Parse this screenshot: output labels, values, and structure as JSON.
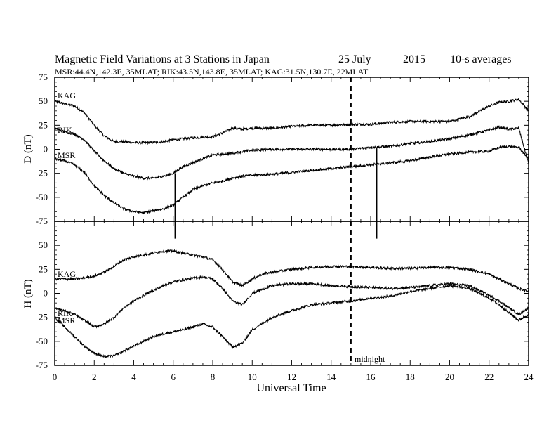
{
  "title": {
    "main": "Magnetic Field Variations at 3 Stations in Japan",
    "date": "25 July",
    "year": "2015",
    "avg": "10-s averages"
  },
  "subtitle": "MSR:44.4N,142.3E, 35MLAT;  RIK:43.5N,143.8E, 35MLAT;  KAG:31.5N,130.7E, 22MLAT",
  "xlabel": "Universal Time",
  "midnight_label": "midnight",
  "xticks": [
    "0",
    "2",
    "4",
    "6",
    "8",
    "10",
    "12",
    "14",
    "16",
    "18",
    "20",
    "22",
    "24"
  ],
  "chart_data": [
    {
      "type": "line",
      "panel": "D",
      "ylabel": "D (nT)",
      "xlim": [
        0,
        24
      ],
      "ylim": [
        -75,
        75
      ],
      "yticks": [
        "75",
        "50",
        "25",
        "0",
        "-25",
        "-50",
        "-75"
      ],
      "midnight_ut": 15,
      "spikes": [
        {
          "x": 6.1,
          "y_top": -25,
          "y_bottom": -93
        },
        {
          "x": 16.3,
          "y_top": 2,
          "y_bottom": -93
        }
      ],
      "series": [
        {
          "name": "KAG",
          "x": [
            0,
            1,
            1.5,
            2,
            2.5,
            3,
            3.5,
            4,
            4.5,
            5,
            5.5,
            6,
            7,
            8,
            8.5,
            9,
            9.5,
            10,
            11,
            12,
            13,
            14,
            15,
            16,
            17,
            18,
            19,
            20,
            21,
            22,
            22.5,
            23,
            23.5,
            24
          ],
          "values": [
            50,
            45,
            38,
            25,
            14,
            8,
            8,
            7,
            7,
            7,
            8,
            10,
            12,
            13,
            17,
            22,
            21,
            22,
            22,
            24,
            25,
            25,
            26,
            26,
            28,
            29,
            29,
            29,
            34,
            45,
            49,
            50,
            52,
            40
          ]
        },
        {
          "name": "RIK",
          "x": [
            0,
            0.5,
            1,
            1.5,
            2,
            2.5,
            3,
            3.5,
            4,
            4.5,
            5,
            5.5,
            6,
            6.5,
            7,
            7.5,
            8,
            9,
            10,
            11,
            12,
            13,
            14,
            15,
            16,
            17,
            18,
            19,
            20,
            21,
            22,
            22.5,
            23,
            23.5,
            24
          ],
          "values": [
            22,
            18,
            16,
            10,
            -2,
            -12,
            -20,
            -25,
            -28,
            -30,
            -30,
            -28,
            -25,
            -18,
            -14,
            -10,
            -6,
            -4,
            -1,
            0,
            0,
            0,
            0,
            0,
            2,
            3,
            6,
            8,
            11,
            15,
            20,
            23,
            21,
            22,
            -15
          ]
        },
        {
          "name": "MSR",
          "x": [
            0,
            0.5,
            1,
            1.5,
            2,
            2.5,
            3,
            3.5,
            4,
            4.5,
            5,
            5.5,
            6,
            6.5,
            7,
            7.5,
            8,
            8.5,
            9,
            9.5,
            10,
            11,
            12,
            13,
            14,
            15,
            16,
            17,
            18,
            19,
            20,
            21,
            22,
            22.5,
            23,
            23.5,
            24
          ],
          "values": [
            -10,
            -12,
            -16,
            -24,
            -38,
            -48,
            -56,
            -62,
            -65,
            -66,
            -64,
            -62,
            -58,
            -50,
            -42,
            -38,
            -35,
            -33,
            -30,
            -28,
            -27,
            -26,
            -24,
            -22,
            -20,
            -18,
            -16,
            -14,
            -12,
            -8,
            -5,
            -3,
            -2,
            2,
            3,
            2,
            -10
          ]
        }
      ]
    },
    {
      "type": "line",
      "panel": "H",
      "ylabel": "H (nT)",
      "xlim": [
        0,
        24
      ],
      "ylim": [
        -75,
        75
      ],
      "yticks": [
        "50",
        "25",
        "0",
        "-25",
        "-50",
        "-75"
      ],
      "midnight_ut": 15,
      "series": [
        {
          "name": "KAG",
          "x": [
            0,
            1,
            1.5,
            2,
            2.5,
            3,
            3.5,
            4,
            4.5,
            5,
            5.5,
            6,
            6.5,
            7,
            7.5,
            8,
            8.5,
            9,
            9.5,
            10,
            10.5,
            11,
            12,
            13,
            14,
            15,
            16,
            17,
            18,
            19,
            20,
            21,
            22,
            22.5,
            23,
            23.5,
            24
          ],
          "values": [
            15,
            15,
            16,
            18,
            22,
            28,
            35,
            38,
            40,
            42,
            44,
            44,
            42,
            40,
            38,
            35,
            25,
            12,
            8,
            15,
            20,
            22,
            25,
            27,
            28,
            28,
            27,
            26,
            26,
            27,
            27,
            25,
            20,
            15,
            10,
            5,
            2
          ]
        },
        {
          "name": "RIK",
          "x": [
            0,
            0.5,
            1,
            1.5,
            2,
            2.5,
            3,
            3.5,
            4,
            4.5,
            5,
            5.5,
            6,
            6.5,
            7,
            7.5,
            8,
            8.5,
            9,
            9.5,
            10,
            11,
            12,
            13,
            14,
            15,
            16,
            17,
            18,
            19,
            20,
            21,
            22,
            22.5,
            23,
            23.5,
            24
          ],
          "values": [
            -15,
            -18,
            -22,
            -28,
            -35,
            -32,
            -25,
            -15,
            -8,
            -2,
            3,
            8,
            12,
            14,
            16,
            17,
            15,
            5,
            -8,
            -12,
            0,
            8,
            10,
            10,
            8,
            7,
            6,
            5,
            6,
            8,
            10,
            8,
            -2,
            -8,
            -15,
            -22,
            -15
          ]
        },
        {
          "name": "MSR",
          "x": [
            0,
            0.5,
            1,
            1.5,
            2,
            2.5,
            3,
            3.5,
            4,
            4.5,
            5,
            5.5,
            6,
            6.5,
            7,
            7.5,
            8,
            8.5,
            9,
            9.5,
            10,
            11,
            12,
            13,
            14,
            15,
            16,
            17,
            18,
            19,
            20,
            21,
            22,
            22.5,
            23,
            23.5,
            24
          ],
          "values": [
            -25,
            -35,
            -45,
            -55,
            -62,
            -66,
            -65,
            -60,
            -55,
            -50,
            -45,
            -42,
            -40,
            -38,
            -35,
            -32,
            -35,
            -45,
            -56,
            -52,
            -38,
            -25,
            -18,
            -12,
            -10,
            -8,
            -5,
            -3,
            2,
            5,
            8,
            5,
            -5,
            -12,
            -20,
            -28,
            -22
          ]
        }
      ]
    }
  ]
}
